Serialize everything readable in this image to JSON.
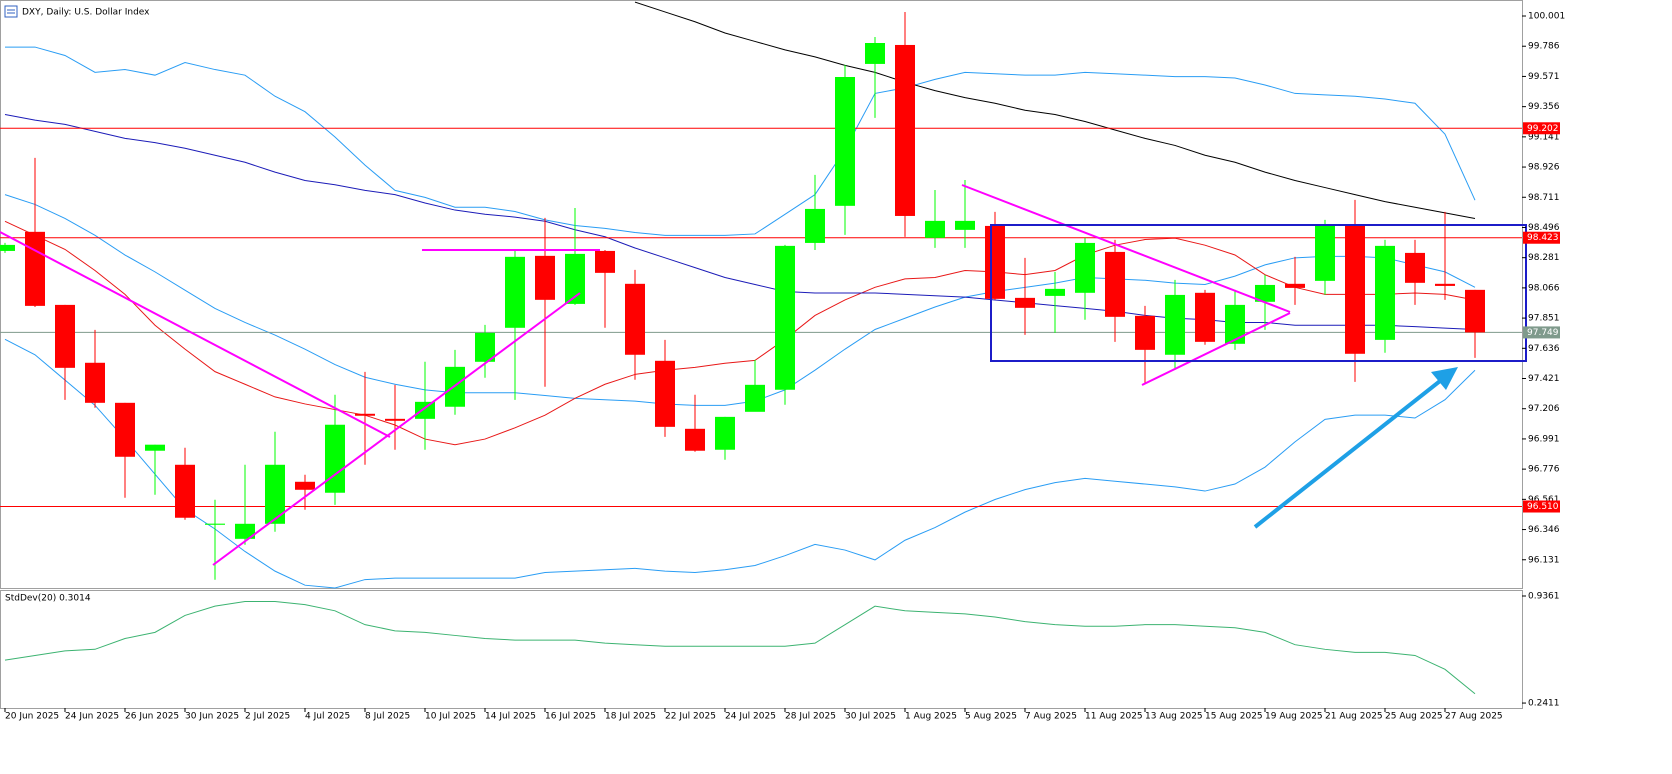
{
  "chart_data": [
    {
      "type": "candlestick",
      "title": "DXY, Daily:  U.S. Dollar Index",
      "categories": [
        "20 Jun 2025",
        null,
        "24 Jun 2025",
        null,
        "26 Jun 2025",
        null,
        "30 Jun 2025",
        null,
        "2 Jul 2025",
        null,
        "4 Jul 2025",
        null,
        "8 Jul 2025",
        null,
        "10 Jul 2025",
        null,
        "14 Jul 2025",
        null,
        "16 Jul 2025",
        null,
        "18 Jul 2025",
        null,
        "22 Jul 2025",
        null,
        "24 Jul 2025",
        null,
        "28 Jul 2025",
        null,
        "30 Jul 2025",
        null,
        "1 Aug 2025",
        null,
        "5 Aug 2025",
        null,
        "7 Aug 2025",
        null,
        "11 Aug 2025",
        null,
        "13 Aug 2025",
        null,
        "15 Aug 2025",
        null,
        "19 Aug 2025",
        null,
        "21 Aug 2025",
        null,
        "25 Aug 2025",
        null,
        "27 Aug 2025",
        null
      ],
      "open": [
        98.329,
        98.465,
        97.945,
        97.533,
        97.248,
        96.907,
        96.807,
        96.38,
        96.28,
        96.387,
        96.686,
        96.608,
        97.17,
        97.134,
        97.134,
        97.22,
        97.54,
        97.782,
        98.294,
        97.952,
        98.329,
        98.095,
        97.547,
        97.063,
        96.914,
        97.184,
        97.341,
        98.386,
        98.65,
        99.66,
        99.795,
        98.422,
        98.479,
        98.507,
        97.995,
        98.009,
        98.031,
        98.322,
        97.867,
        97.59,
        98.031,
        97.668,
        97.967,
        98.095,
        98.116,
        98.514,
        97.696,
        98.315,
        98.095,
        98.052
      ],
      "high": [
        98.386,
        98.991,
        97.945,
        97.767,
        97.248,
        96.95,
        96.928,
        96.558,
        96.807,
        97.042,
        96.736,
        97.305,
        97.468,
        97.376,
        97.54,
        97.625,
        97.803,
        98.336,
        98.564,
        98.635,
        98.336,
        98.194,
        97.696,
        97.305,
        97.148,
        97.554,
        98.372,
        98.87,
        99.653,
        99.852,
        100.03,
        98.763,
        98.834,
        98.607,
        98.28,
        98.18,
        98.422,
        98.408,
        97.938,
        98.123,
        98.052,
        98.052,
        98.159,
        98.287,
        98.55,
        98.692,
        98.408,
        98.408,
        98.607,
        98.052
      ],
      "low": [
        98.315,
        97.93,
        97.269,
        97.213,
        96.572,
        96.594,
        96.416,
        95.989,
        96.238,
        96.33,
        96.487,
        96.522,
        96.807,
        96.914,
        96.914,
        97.163,
        97.426,
        97.269,
        97.362,
        97.945,
        97.782,
        97.412,
        97.006,
        96.9,
        96.843,
        97.198,
        97.234,
        98.336,
        98.443,
        99.276,
        98.429,
        98.351,
        98.351,
        97.981,
        97.732,
        97.746,
        97.839,
        97.682,
        97.39,
        97.483,
        97.661,
        97.625,
        97.767,
        97.945,
        98.016,
        97.397,
        97.604,
        97.945,
        97.981,
        97.568
      ],
      "close": [
        98.372,
        97.938,
        97.497,
        97.248,
        96.864,
        96.95,
        96.43,
        96.388,
        96.387,
        96.807,
        96.629,
        97.092,
        97.156,
        97.12,
        97.255,
        97.504,
        97.746,
        98.287,
        97.981,
        98.308,
        98.173,
        97.59,
        97.077,
        96.907,
        97.148,
        97.376,
        98.365,
        98.628,
        99.567,
        99.809,
        98.578,
        98.543,
        98.543,
        97.988,
        97.924,
        98.059,
        98.386,
        97.86,
        97.625,
        98.016,
        97.682,
        97.945,
        98.087,
        98.066,
        98.514,
        97.597,
        98.365,
        98.102,
        98.08,
        97.749
      ],
      "up_color": "#00ff00",
      "down_color": "#ff0000",
      "series": [
        {
          "color": "#2a9df4",
          "values": [
            99.78,
            99.78,
            99.72,
            99.6,
            99.62,
            99.58,
            99.67,
            99.62,
            99.58,
            99.43,
            99.32,
            99.14,
            98.94,
            98.76,
            98.71,
            98.64,
            98.64,
            98.61,
            98.55,
            98.51,
            98.49,
            98.46,
            98.44,
            98.44,
            98.44,
            98.45,
            98.59,
            98.73,
            99.05,
            99.45,
            99.49,
            99.55,
            99.6,
            99.59,
            99.58,
            99.58,
            99.6,
            99.59,
            99.58,
            99.57,
            99.57,
            99.56,
            99.51,
            99.45,
            99.44,
            99.43,
            99.41,
            99.38,
            99.16,
            98.69
          ]
        },
        {
          "color": "#2a9df4",
          "values": [
            98.73,
            98.66,
            98.56,
            98.44,
            98.3,
            98.18,
            98.05,
            97.92,
            97.82,
            97.73,
            97.63,
            97.52,
            97.43,
            97.38,
            97.34,
            97.32,
            97.32,
            97.32,
            97.3,
            97.28,
            97.27,
            97.26,
            97.24,
            97.23,
            97.23,
            97.26,
            97.34,
            97.48,
            97.63,
            97.77,
            97.85,
            97.93,
            98.0,
            98.04,
            98.07,
            98.1,
            98.14,
            98.13,
            98.12,
            98.1,
            98.09,
            98.15,
            98.23,
            98.28,
            98.29,
            98.29,
            98.28,
            98.23,
            98.18,
            98.07
          ]
        },
        {
          "color": "#2a9df4",
          "values": [
            97.7,
            97.59,
            97.41,
            97.23,
            96.99,
            96.74,
            96.49,
            96.35,
            96.19,
            96.05,
            95.95,
            95.93,
            95.99,
            96.0,
            96.0,
            96.0,
            96.0,
            96.0,
            96.04,
            96.05,
            96.06,
            96.07,
            96.05,
            96.04,
            96.06,
            96.09,
            96.16,
            96.24,
            96.2,
            96.13,
            96.27,
            96.36,
            96.47,
            96.56,
            96.63,
            96.68,
            96.71,
            96.69,
            96.67,
            96.65,
            96.62,
            96.67,
            96.79,
            96.97,
            97.13,
            97.16,
            97.16,
            97.14,
            97.27,
            97.48
          ]
        },
        {
          "color": "#e81818",
          "values": [
            98.54,
            98.44,
            98.34,
            98.19,
            98.02,
            97.8,
            97.63,
            97.47,
            97.38,
            97.29,
            97.24,
            97.2,
            97.16,
            97.09,
            96.99,
            96.95,
            96.99,
            97.07,
            97.16,
            97.28,
            97.38,
            97.45,
            97.48,
            97.5,
            97.53,
            97.55,
            97.7,
            97.87,
            97.98,
            98.07,
            98.13,
            98.14,
            98.19,
            98.18,
            98.16,
            98.19,
            98.3,
            98.37,
            98.41,
            98.42,
            98.37,
            98.3,
            98.16,
            98.07,
            98.02,
            98.02,
            98.02,
            98.03,
            98.02,
            97.98
          ]
        },
        {
          "color": "#1c1cb8",
          "values": [
            99.3,
            99.26,
            99.23,
            99.18,
            99.13,
            99.1,
            99.06,
            99.01,
            98.96,
            98.89,
            98.83,
            98.8,
            98.76,
            98.73,
            98.67,
            98.62,
            98.59,
            98.57,
            98.54,
            98.48,
            98.43,
            98.35,
            98.28,
            98.21,
            98.14,
            98.09,
            98.04,
            98.03,
            98.03,
            98.03,
            98.02,
            98.01,
            98.0,
            97.98,
            97.96,
            97.94,
            97.92,
            97.9,
            97.87,
            97.85,
            97.84,
            97.82,
            97.82,
            97.8,
            97.8,
            97.8,
            97.8,
            97.79,
            97.78,
            97.77
          ]
        },
        {
          "color": "#000000",
          "values": [
            null,
            null,
            null,
            null,
            null,
            null,
            null,
            null,
            null,
            null,
            null,
            null,
            null,
            null,
            null,
            null,
            null,
            null,
            null,
            null,
            null,
            100.1,
            100.03,
            99.96,
            99.88,
            99.82,
            99.76,
            99.71,
            99.65,
            99.6,
            99.53,
            99.47,
            99.42,
            99.38,
            99.33,
            99.3,
            99.25,
            99.19,
            99.13,
            99.08,
            99.01,
            98.96,
            98.89,
            98.83,
            98.78,
            98.73,
            98.68,
            98.64,
            98.6,
            98.56
          ]
        }
      ],
      "levels": [
        {
          "value": 99.202,
          "color": "#ff0000"
        },
        {
          "value": 98.423,
          "color": "#ff0000"
        },
        {
          "value": 96.51,
          "label": "96.510",
          "color": "#ff0000"
        },
        {
          "value": 97.749,
          "color": "#7f9a8c"
        }
      ],
      "ylim": [
        95.93,
        100.115
      ],
      "yticks": [
        100.001,
        99.786,
        99.571,
        99.356,
        99.141,
        98.926,
        98.711,
        98.496,
        98.281,
        98.066,
        97.851,
        97.636,
        97.421,
        97.206,
        96.991,
        96.776,
        96.561,
        96.346,
        96.131
      ],
      "grid": false
    },
    {
      "type": "line",
      "title": "StdDev(20) 0.3014",
      "color": "#3cb371",
      "values": [
        0.52,
        0.55,
        0.58,
        0.59,
        0.66,
        0.7,
        0.81,
        0.87,
        0.9,
        0.9,
        0.88,
        0.84,
        0.75,
        0.71,
        0.7,
        0.68,
        0.66,
        0.65,
        0.65,
        0.65,
        0.63,
        0.62,
        0.61,
        0.61,
        0.61,
        0.61,
        0.61,
        0.63,
        0.75,
        0.87,
        0.84,
        0.83,
        0.82,
        0.8,
        0.77,
        0.75,
        0.74,
        0.74,
        0.75,
        0.75,
        0.74,
        0.73,
        0.7,
        0.62,
        0.59,
        0.57,
        0.57,
        0.55,
        0.46,
        0.3014
      ],
      "ylim": [
        0.209,
        0.975
      ],
      "yticks": [
        0.9361,
        0.2411
      ],
      "grid": false
    }
  ]
}
